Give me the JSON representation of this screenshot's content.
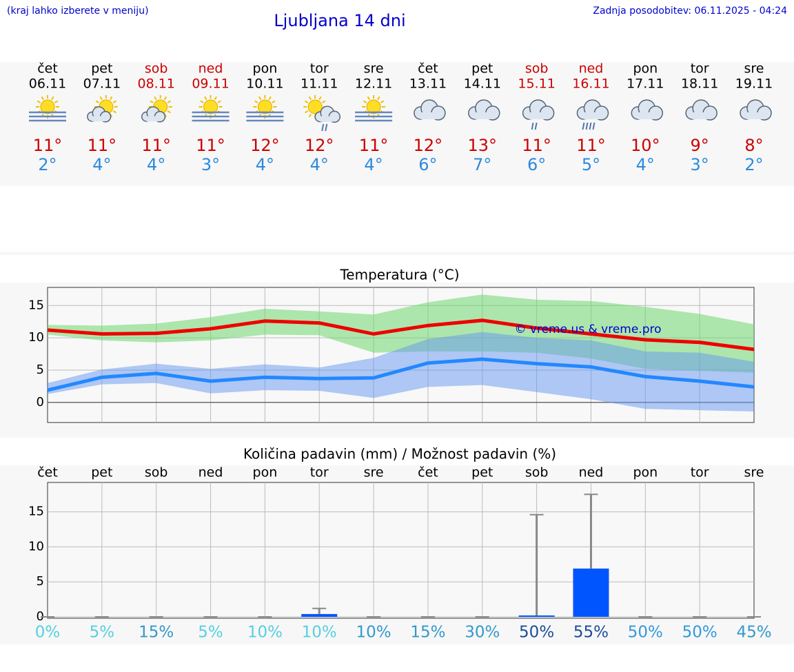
{
  "header": {
    "menu_note": "(kraj lahko izberete v meniju)",
    "title": "Ljubljana 14 dni",
    "updated": "Zadnja posodobitev: 06.11.2025 - 04:24"
  },
  "days": [
    {
      "weekday": "čet",
      "date": "06.11",
      "color": "#000000",
      "icon": "sun-fog",
      "max": "11°",
      "min": "2°"
    },
    {
      "weekday": "pet",
      "date": "07.11",
      "color": "#000000",
      "icon": "sun-cloud",
      "max": "11°",
      "min": "4°"
    },
    {
      "weekday": "sob",
      "date": "08.11",
      "color": "#cc0000",
      "icon": "sun-cloud",
      "max": "11°",
      "min": "4°"
    },
    {
      "weekday": "ned",
      "date": "09.11",
      "color": "#cc0000",
      "icon": "sun-fog",
      "max": "11°",
      "min": "3°"
    },
    {
      "weekday": "pon",
      "date": "10.11",
      "color": "#000000",
      "icon": "sun-fog",
      "max": "12°",
      "min": "4°"
    },
    {
      "weekday": "tor",
      "date": "11.11",
      "color": "#000000",
      "icon": "sun-cloud-rain",
      "max": "12°",
      "min": "4°"
    },
    {
      "weekday": "sre",
      "date": "12.11",
      "color": "#000000",
      "icon": "sun-fog",
      "max": "11°",
      "min": "4°"
    },
    {
      "weekday": "čet",
      "date": "13.11",
      "color": "#000000",
      "icon": "cloud",
      "max": "12°",
      "min": "6°"
    },
    {
      "weekday": "pet",
      "date": "14.11",
      "color": "#000000",
      "icon": "cloud",
      "max": "13°",
      "min": "7°"
    },
    {
      "weekday": "sob",
      "date": "15.11",
      "color": "#cc0000",
      "icon": "cloud-rain",
      "max": "11°",
      "min": "6°"
    },
    {
      "weekday": "ned",
      "date": "16.11",
      "color": "#cc0000",
      "icon": "cloud-rain-heavy",
      "max": "11°",
      "min": "5°"
    },
    {
      "weekday": "pon",
      "date": "17.11",
      "color": "#000000",
      "icon": "cloud",
      "max": "10°",
      "min": "4°"
    },
    {
      "weekday": "tor",
      "date": "18.11",
      "color": "#000000",
      "icon": "cloud",
      "max": "9°",
      "min": "3°"
    },
    {
      "weekday": "sre",
      "date": "19.11",
      "color": "#000000",
      "icon": "cloud",
      "max": "8°",
      "min": "2°"
    }
  ],
  "chart_data": [
    {
      "type": "line",
      "title": "Temperatura (°C)",
      "annotation": "© vreme.us & vreme.pro",
      "categories": [
        null,
        null,
        null,
        null,
        null,
        null,
        null,
        null,
        null,
        null,
        null,
        null,
        null,
        null
      ],
      "ylim": [
        -3.1,
        17.8
      ],
      "yticks": [
        0,
        5,
        10,
        15
      ],
      "grid": true,
      "bands": [
        {
          "color": "rgba(110,215,110,0.55)",
          "upper": [
            12.0,
            11.9,
            12.2,
            13.2,
            14.5,
            14.1,
            13.6,
            15.5,
            16.7,
            15.9,
            15.7,
            14.8,
            13.7,
            12.1
          ],
          "lower": [
            10.5,
            9.6,
            9.3,
            9.6,
            10.5,
            10.4,
            7.7,
            7.9,
            7.9,
            7.7,
            6.8,
            5.2,
            4.9,
            4.6
          ]
        },
        {
          "color": "rgba(100,150,240,0.5)",
          "upper": [
            3.0,
            5.1,
            6.0,
            5.2,
            5.9,
            5.4,
            6.9,
            9.8,
            10.9,
            10.0,
            9.6,
            7.9,
            7.7,
            6.3
          ],
          "lower": [
            1.3,
            2.8,
            3.0,
            1.4,
            1.9,
            1.8,
            0.7,
            2.4,
            2.7,
            1.6,
            0.5,
            -1.0,
            -1.2,
            -1.4
          ]
        }
      ],
      "series": [
        {
          "color": "#ee0000",
          "values": [
            11.2,
            10.6,
            10.7,
            11.4,
            12.6,
            12.3,
            10.6,
            11.9,
            12.7,
            11.5,
            10.6,
            9.7,
            9.3,
            8.2
          ]
        },
        {
          "color": "#2288ff",
          "values": [
            1.9,
            3.9,
            4.5,
            3.3,
            3.9,
            3.7,
            3.8,
            6.1,
            6.7,
            6.0,
            5.5,
            4.0,
            3.3,
            2.4
          ]
        }
      ]
    },
    {
      "type": "bar",
      "title": "Količina padavin (mm) / Možnost padavin (%)",
      "categories": [
        "čet",
        "pet",
        "sob",
        "ned",
        "pon",
        "tor",
        "sre",
        "čet",
        "pet",
        "sob",
        "ned",
        "pon",
        "tor",
        "sre"
      ],
      "values": [
        0,
        0,
        0,
        0,
        0,
        0.4,
        0,
        0,
        0,
        0.2,
        6.9,
        0,
        0,
        0
      ],
      "error_high": [
        0,
        0,
        0,
        0,
        0,
        1.2,
        0,
        0,
        0,
        14.6,
        17.5,
        0,
        0,
        0
      ],
      "color": "#0055ff",
      "error_color": "#888888",
      "probability": [
        0,
        5,
        15,
        5,
        10,
        10,
        10,
        15,
        30,
        50,
        55,
        50,
        50,
        45
      ],
      "probability_labels": [
        "0%",
        "5%",
        "15%",
        "5%",
        "10%",
        "10%",
        "10%",
        "15%",
        "30%",
        "50%",
        "55%",
        "50%",
        "50%",
        "45%"
      ],
      "probability_colors": [
        "#55d0e0",
        "#55d0e0",
        "#3399cc",
        "#55d0e0",
        "#55d0e0",
        "#55d0e0",
        "#3399cc",
        "#3399cc",
        "#3399cc",
        "#1a4d99",
        "#1a4d99",
        "#3399dd",
        "#3399dd",
        "#3399cc"
      ],
      "ylim": [
        -0.2,
        19.2
      ],
      "yticks": [
        0,
        5,
        10,
        15
      ],
      "grid": true
    }
  ]
}
